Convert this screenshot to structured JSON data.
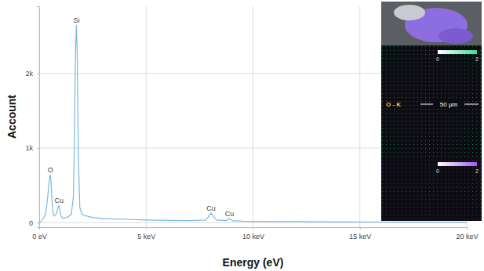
{
  "chart_data": {
    "type": "line",
    "x_label": "Energy (eV)",
    "y_label": "Account",
    "color": "#7ab8e0",
    "grid": true,
    "xlim": [
      0,
      20
    ],
    "xticks": [
      {
        "value": 0,
        "label": "0 eV"
      },
      {
        "value": 5,
        "label": "5 keV"
      },
      {
        "value": 10,
        "label": "10 keV"
      },
      {
        "value": 15,
        "label": "15 keV"
      },
      {
        "value": 20,
        "label": "20 keV"
      }
    ],
    "ylim": [
      -60,
      2900
    ],
    "yticks": [
      0,
      {
        "value": 1000,
        "label": "1k"
      },
      {
        "value": 2000,
        "label": "2k"
      }
    ],
    "x": [
      0,
      0.1,
      0.2,
      0.3,
      0.4,
      0.45,
      0.5,
      0.525,
      0.55,
      0.6,
      0.65,
      0.7,
      0.8,
      0.85,
      0.9,
      0.93,
      0.96,
      1.0,
      1.1,
      1.3,
      1.5,
      1.6,
      1.65,
      1.7,
      1.74,
      1.78,
      1.83,
      1.9,
      2.0,
      2.2,
      2.5,
      3,
      4,
      5,
      6,
      7,
      7.8,
      7.95,
      8.04,
      8.13,
      8.3,
      8.75,
      8.85,
      8.9,
      8.95,
      9.05,
      9.5,
      10,
      12,
      14,
      16,
      18,
      20
    ],
    "values": [
      0,
      20,
      60,
      120,
      350,
      520,
      620,
      640,
      560,
      280,
      120,
      90,
      120,
      170,
      220,
      230,
      180,
      100,
      60,
      70,
      110,
      350,
      1200,
      2300,
      2650,
      2200,
      900,
      200,
      110,
      90,
      70,
      55,
      45,
      35,
      30,
      28,
      35,
      90,
      130,
      90,
      35,
      28,
      45,
      55,
      45,
      25,
      20,
      18,
      14,
      10,
      8,
      6,
      5
    ],
    "annotations": [
      {
        "text": "O",
        "x": 0.52,
        "y": 640
      },
      {
        "text": "Cu",
        "x": 0.93,
        "y": 230
      },
      {
        "text": "Si",
        "x": 1.74,
        "y": 2650
      },
      {
        "text": "Cu",
        "x": 8.04,
        "y": 130
      },
      {
        "text": "Cu",
        "x": 8.9,
        "y": 55
      }
    ]
  },
  "inset": {
    "map_label": "O - K",
    "scale_bar": "50 µm",
    "colorbars": [
      {
        "min": 0,
        "max": 2,
        "color": "#3ddc97"
      },
      {
        "min": 0,
        "max": 2,
        "color": "#a05ce6"
      }
    ]
  }
}
